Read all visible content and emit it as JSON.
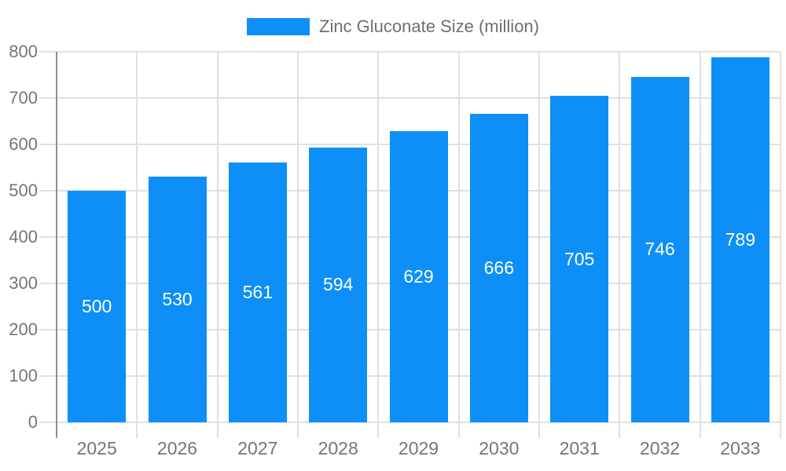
{
  "chart_data": {
    "type": "bar",
    "title": "Zinc Gluconate Size (million)",
    "legend": {
      "label": "Zinc Gluconate Size (million)",
      "position": "top-center"
    },
    "categories": [
      "2025",
      "2026",
      "2027",
      "2028",
      "2029",
      "2030",
      "2031",
      "2032",
      "2033"
    ],
    "series": [
      {
        "name": "Zinc Gluconate Size (million)",
        "values": [
          500,
          530,
          561,
          594,
          629,
          666,
          705,
          746,
          789
        ]
      }
    ],
    "value_labels": "inside-center",
    "xlabel": "",
    "ylabel": "",
    "ylim": [
      0,
      800
    ],
    "yticks": [
      0,
      100,
      200,
      300,
      400,
      500,
      600,
      700,
      800
    ],
    "grid": true,
    "colors": {
      "bar": "#0d8ff7",
      "value_label": "#ffffff",
      "axis_text": "#757575",
      "legend_text": "#6e6e6e",
      "grid_line": "#e0e0e0",
      "axis_line": "#8f8f8f",
      "background": "#ffffff"
    }
  }
}
